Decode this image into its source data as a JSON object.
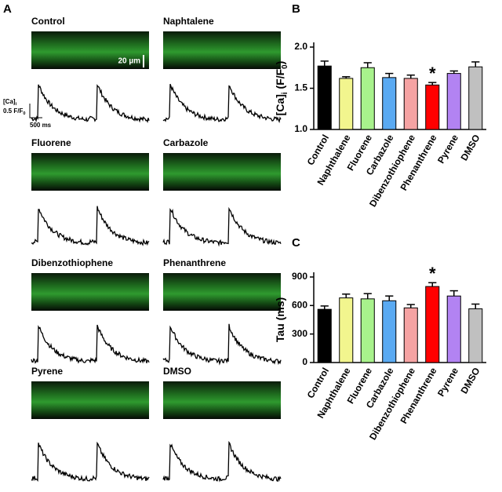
{
  "panel_a": {
    "label": "A",
    "titles": [
      "Control",
      "Naphtalene",
      "Fluorene",
      "Carbazole",
      "Dibenzothiophene",
      "Phenanthrene",
      "Pyrene",
      "DMSO"
    ],
    "scale": {
      "space": "20 µm",
      "ca": [
        "[Ca]",
        "i"
      ],
      "ratio": [
        "0.5 F/F",
        "0"
      ],
      "time": "500 ms"
    }
  },
  "chart_data": [
    {
      "type": "bar",
      "panel": "B",
      "ylabel": [
        "[Ca]",
        "i",
        " (F/F",
        "0",
        ")"
      ],
      "categories": [
        "Control",
        "Naphthalene",
        "Fluorene",
        "Carbazole",
        "Dibenzothiophene",
        "Phenanthrene",
        "Pyrene",
        "DMSO"
      ],
      "values": [
        1.77,
        1.62,
        1.75,
        1.63,
        1.62,
        1.54,
        1.68,
        1.76
      ],
      "errors": [
        0.06,
        0.02,
        0.06,
        0.05,
        0.04,
        0.03,
        0.03,
        0.06
      ],
      "colors": [
        "#000000",
        "#f2f58e",
        "#a8f28c",
        "#5aaaf2",
        "#f5a3a3",
        "#ff0000",
        "#b283f2",
        "#c0c0c0"
      ],
      "ylim": [
        1.0,
        2.0
      ],
      "yticks": [
        {
          "value": 1.0,
          "label": "1.0"
        },
        1.5,
        {
          "value": 2.0,
          "label": "2.0"
        }
      ],
      "annotations": [
        {
          "text": "*",
          "category": "Phenanthrene"
        }
      ]
    },
    {
      "type": "bar",
      "panel": "C",
      "ylabel": [
        "Tau (ms)"
      ],
      "categories": [
        "Control",
        "Naphthalene",
        "Fluorene",
        "Carbazole",
        "Dibenzothiophene",
        "Phenanthrene",
        "Pyrene",
        "DMSO"
      ],
      "values": [
        560,
        680,
        670,
        650,
        575,
        800,
        700,
        565
      ],
      "errors": [
        35,
        40,
        55,
        50,
        35,
        40,
        55,
        50
      ],
      "colors": [
        "#000000",
        "#f2f58e",
        "#a8f28c",
        "#5aaaf2",
        "#f5a3a3",
        "#ff0000",
        "#b283f2",
        "#c0c0c0"
      ],
      "ylim": [
        0,
        900
      ],
      "yticks": [
        0,
        300,
        600,
        900
      ],
      "annotations": [
        {
          "text": "*",
          "category": "Phenanthrene"
        }
      ]
    }
  ]
}
